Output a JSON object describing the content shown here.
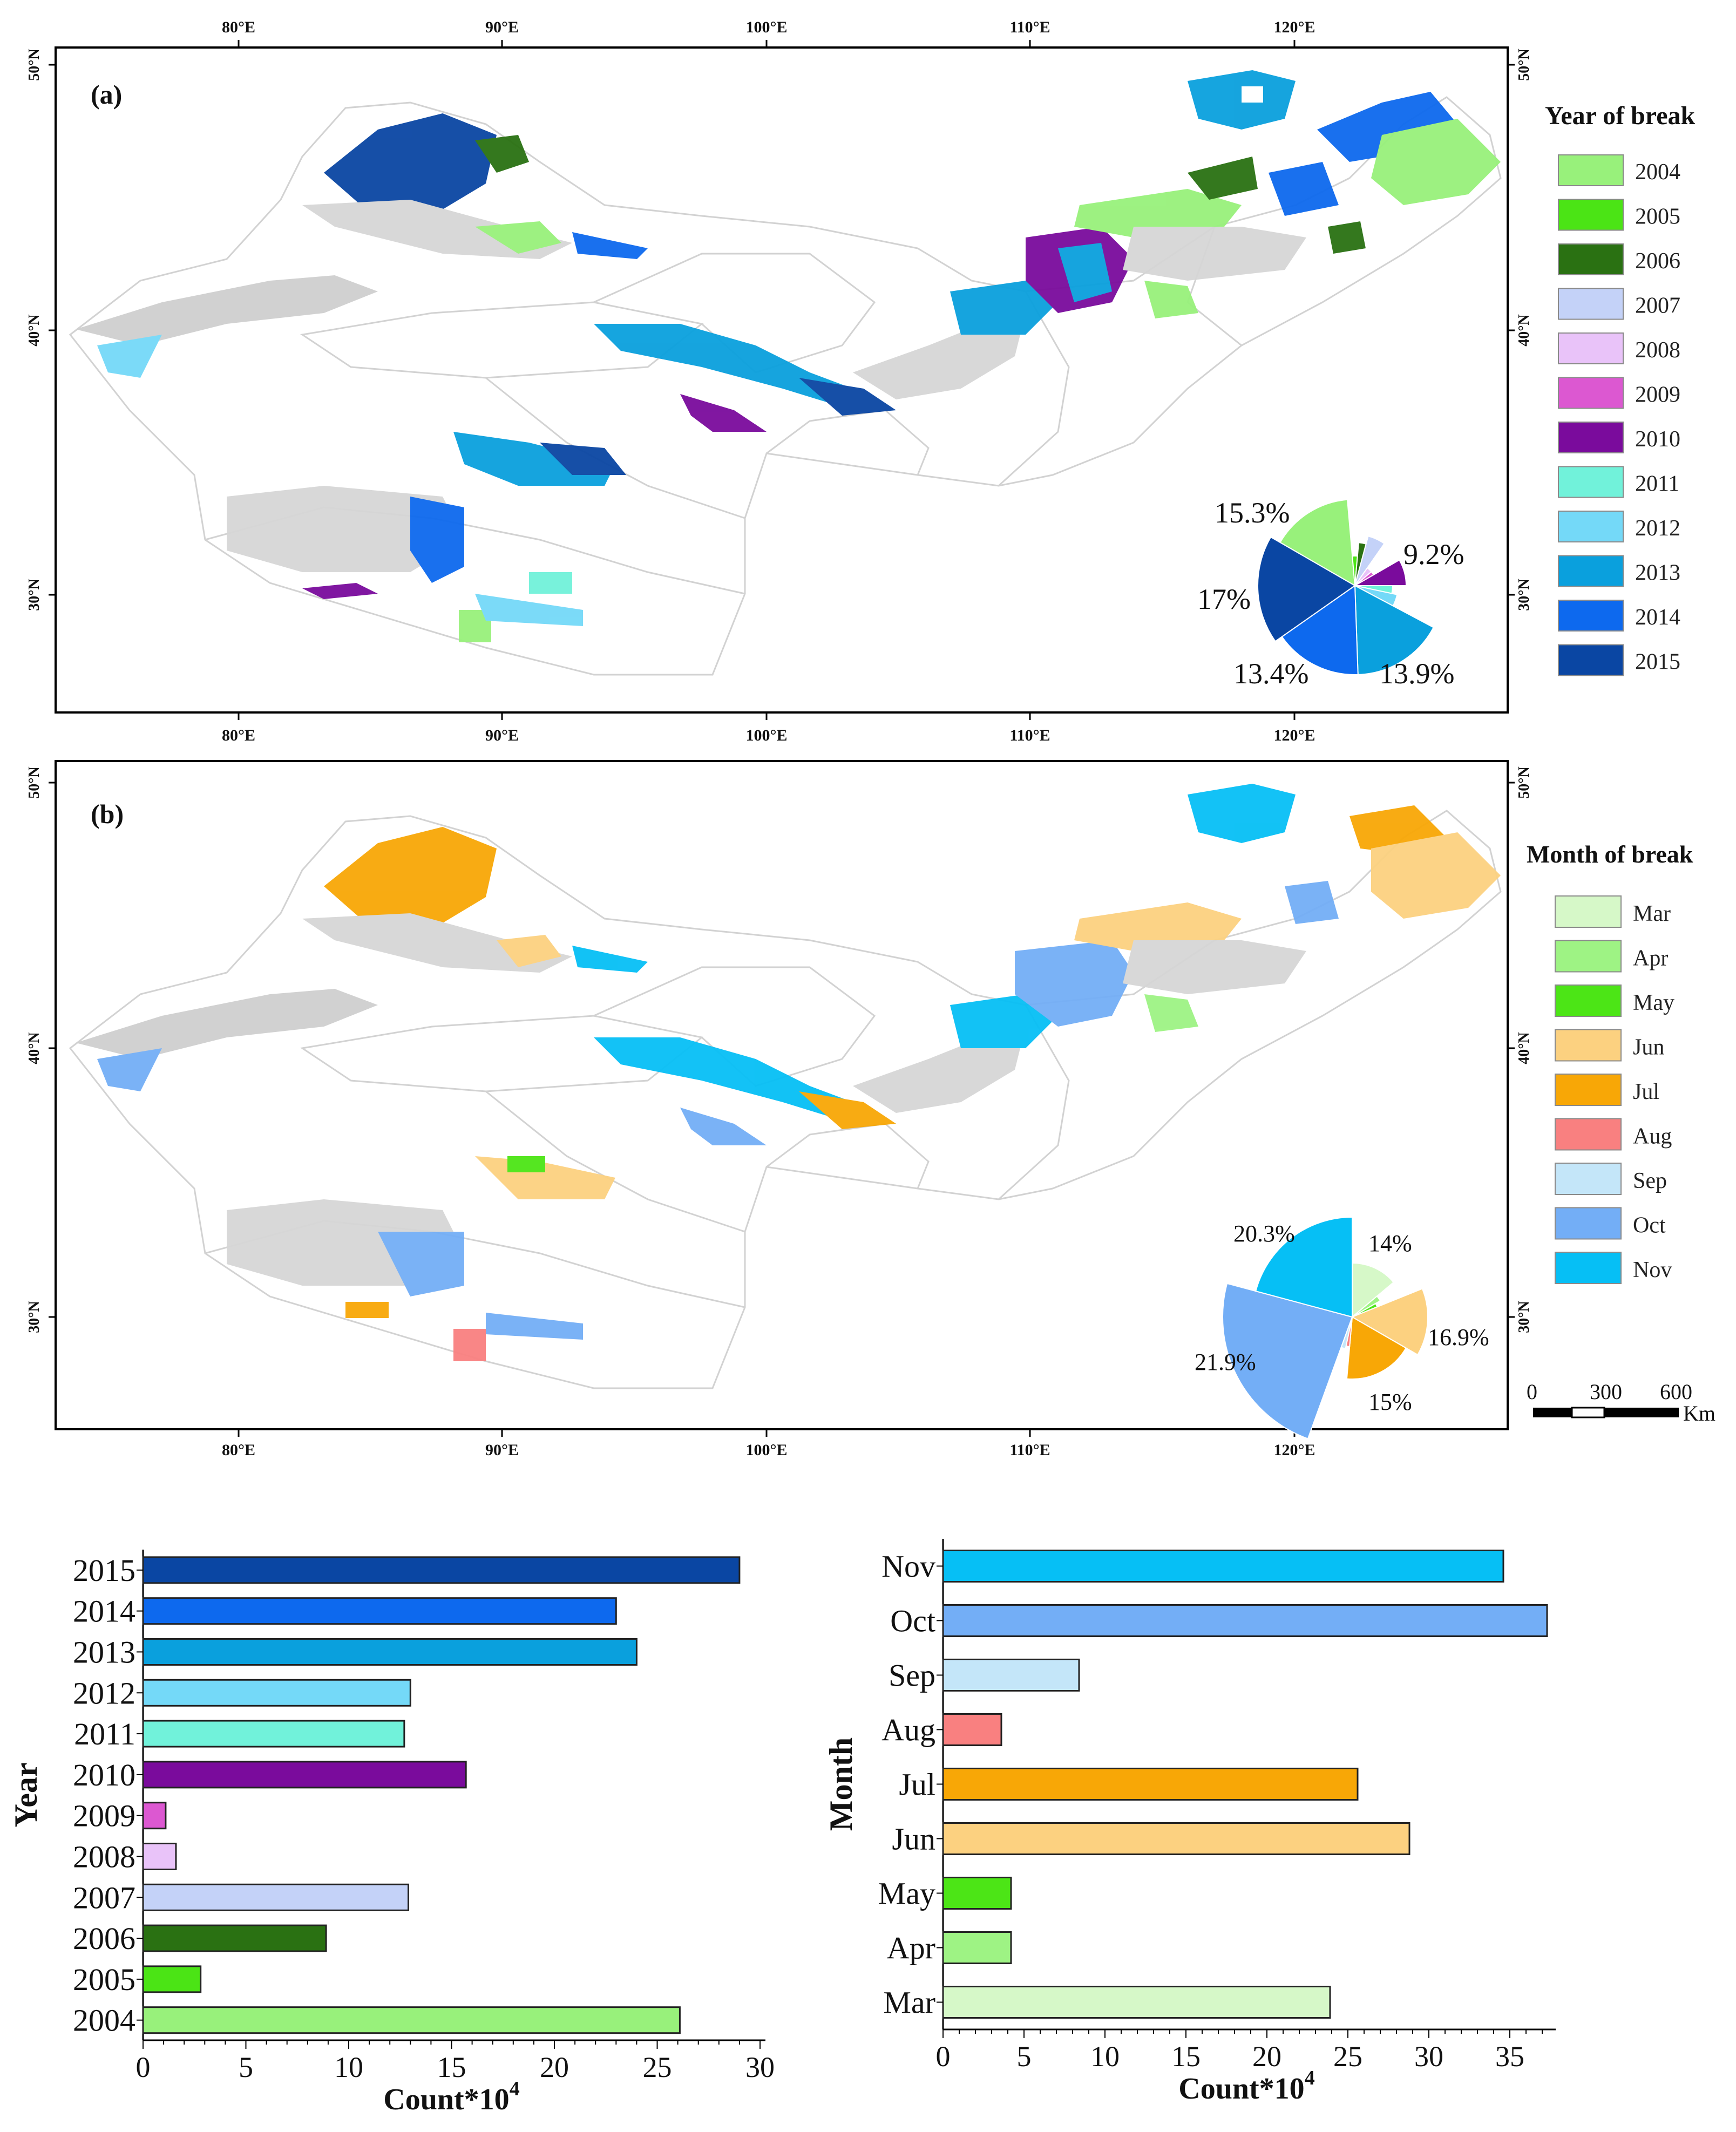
{
  "map_a": {
    "panel_label": "(a)",
    "legend_title": "Year of break",
    "lon_ticks": [
      "80°E",
      "90°E",
      "100°E",
      "110°E",
      "120°E"
    ],
    "lat_ticks": [
      "50°N",
      "40°N",
      "30°N"
    ],
    "legend": [
      {
        "label": "2004",
        "color": "#98F17B"
      },
      {
        "label": "2005",
        "color": "#4BE415"
      },
      {
        "label": "2006",
        "color": "#2A7112"
      },
      {
        "label": "2007",
        "color": "#C4D2F8"
      },
      {
        "label": "2008",
        "color": "#E9C3F9"
      },
      {
        "label": "2009",
        "color": "#DC58D1"
      },
      {
        "label": "2010",
        "color": "#7A0B9C"
      },
      {
        "label": "2011",
        "color": "#71F2DA"
      },
      {
        "label": "2012",
        "color": "#74D9F8"
      },
      {
        "label": "2013",
        "color": "#0AA0DD"
      },
      {
        "label": "2014",
        "color": "#0D69EE"
      },
      {
        "label": "2015",
        "color": "#0A46A3"
      }
    ],
    "pie_labels": [
      "15.3%",
      "9.2%",
      "17%",
      "13.4%",
      "13.9%"
    ]
  },
  "map_b": {
    "panel_label": "(b)",
    "legend_title": "Month of break",
    "lon_ticks": [
      "80°E",
      "90°E",
      "100°E",
      "110°E",
      "120°E"
    ],
    "lat_ticks": [
      "50°N",
      "40°N",
      "30°N"
    ],
    "legend": [
      {
        "label": "Mar",
        "color": "#D6F8C8"
      },
      {
        "label": "Apr",
        "color": "#9EF384"
      },
      {
        "label": "May",
        "color": "#4CE516"
      },
      {
        "label": "Jun",
        "color": "#FCD180"
      },
      {
        "label": "Jul",
        "color": "#F8A706"
      },
      {
        "label": "Aug",
        "color": "#F98080"
      },
      {
        "label": "Sep",
        "color": "#C4E6F9"
      },
      {
        "label": "Oct",
        "color": "#73AEF6"
      },
      {
        "label": "Nov",
        "color": "#06BFF5"
      }
    ],
    "pie_labels": [
      "20.3%",
      "14%",
      "16.9%",
      "21.9%",
      "15%"
    ]
  },
  "scale_bar": {
    "ticks": [
      "0",
      "300",
      "600"
    ],
    "unit": "Km"
  },
  "chart_data": [
    {
      "type": "bar",
      "orientation": "horizontal",
      "categories": [
        "2015",
        "2014",
        "2013",
        "2012",
        "2011",
        "2010",
        "2009",
        "2008",
        "2007",
        "2006",
        "2005",
        "2004"
      ],
      "values": [
        29,
        23,
        24,
        13,
        12.7,
        15.7,
        1.1,
        1.6,
        12.9,
        8.9,
        2.8,
        26.1
      ],
      "colors": [
        "#0A46A3",
        "#0D69EE",
        "#0AA0DD",
        "#74D9F8",
        "#71F2DA",
        "#7A0B9C",
        "#DC58D1",
        "#E9C3F9",
        "#C4D2F8",
        "#2A7112",
        "#4BE415",
        "#98F17B"
      ],
      "xlabel": "Count*10",
      "xlabel_sup": "4",
      "ylabel": "Year",
      "xlim": [
        0,
        30
      ],
      "xticks": [
        "0",
        "5",
        "10",
        "15",
        "20",
        "25",
        "30"
      ]
    },
    {
      "type": "bar",
      "orientation": "horizontal",
      "categories": [
        "Nov",
        "Oct",
        "Sep",
        "Aug",
        "Jul",
        "Jun",
        "May",
        "Apr",
        "Mar"
      ],
      "values": [
        34.6,
        37.3,
        8.4,
        3.6,
        25.6,
        28.8,
        4.2,
        4.2,
        23.9
      ],
      "colors": [
        "#06BFF5",
        "#73AEF6",
        "#C4E6F9",
        "#F98080",
        "#F8A706",
        "#FCD180",
        "#4CE516",
        "#9EF384",
        "#D6F8C8"
      ],
      "xlabel": "Count*10",
      "xlabel_sup": "4",
      "ylabel": "Month",
      "xlim": [
        0,
        37.5
      ],
      "xticks": [
        "0",
        "5",
        "10",
        "15",
        "20",
        "25",
        "30",
        "35"
      ]
    }
  ]
}
